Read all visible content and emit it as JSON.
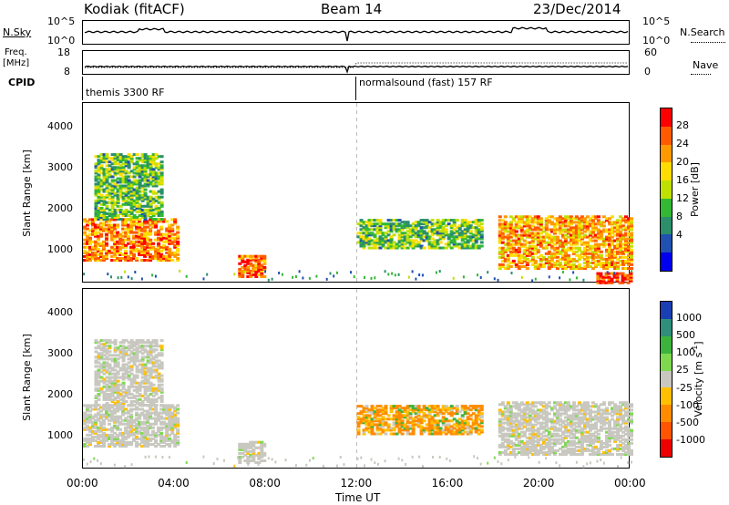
{
  "header": {
    "station": "Kodiak (fitACF)",
    "beam": "Beam 14",
    "date": "23/Dec/2014"
  },
  "top_panels": {
    "nsky_label": "N.Sky",
    "nsearch_label": "N.Search",
    "nsky_ticks": [
      "10^5",
      "10^0"
    ],
    "nsearch_ticks": [
      "10^5",
      "10^0"
    ],
    "freq_label": "Freq.",
    "freq_unit": "[MHz]",
    "freq_ticks": [
      "18",
      "8"
    ],
    "nave_label": "Nave",
    "nave_ticks": [
      "60",
      "0"
    ],
    "cpid_label": "CPID",
    "cpid_segments": [
      "themis 3300 RF",
      "normalsound (fast) 157 RF"
    ]
  },
  "power_panel": {
    "ylabel": "Slant Range [km]",
    "cbar_label": "Power [dB]",
    "cbar_ticks": [
      "28",
      "24",
      "20",
      "16",
      "12",
      "8",
      "4"
    ],
    "cbar_colors": [
      "#ff0000",
      "#ff5a00",
      "#ff9900",
      "#ffdd00",
      "#bfe000",
      "#33b833",
      "#2a8f6a",
      "#2050b0",
      "#0000ee"
    ]
  },
  "velocity_panel": {
    "ylabel": "Slant Range [km]",
    "cbar_label": "Velocity [m s",
    "cbar_label_sup": "-1",
    "cbar_label_end": "]",
    "cbar_ticks": [
      "1000",
      "500",
      "100",
      "25",
      "-25",
      "-100",
      "-500",
      "-1000"
    ],
    "cbar_colors": [
      "#1a3fb5",
      "#2f8f7a",
      "#3cb43c",
      "#7fd94f",
      "#c8c8c0",
      "#ffc000",
      "#ff8c00",
      "#ff5500",
      "#ee0000"
    ]
  },
  "xaxis": {
    "label": "Time UT",
    "ticks": [
      "00:00",
      "04:00",
      "08:00",
      "12:00",
      "16:00",
      "20:00",
      "00:00"
    ]
  },
  "chart_data": [
    {
      "type": "heatmap",
      "title": "Power [dB]",
      "xlabel": "Time UT",
      "ylabel": "Slant Range [km]",
      "xlim": [
        0,
        24
      ],
      "ylim": [
        200,
        4600
      ],
      "yticks": [
        1000,
        2000,
        3000,
        4000
      ],
      "xticks": [
        "00:00",
        "04:00",
        "08:00",
        "12:00",
        "16:00",
        "20:00",
        "00:00"
      ],
      "colorbar": {
        "label": "Power [dB]",
        "ticks": [
          4,
          8,
          12,
          16,
          20,
          24,
          28
        ]
      },
      "regions": [
        {
          "t": [
            0.0,
            4.2
          ],
          "r": [
            800,
            1800
          ],
          "power": 24
        },
        {
          "t": [
            0.5,
            3.5
          ],
          "r": [
            1800,
            3400
          ],
          "power": 12
        },
        {
          "t": [
            6.8,
            8.0
          ],
          "r": [
            400,
            900
          ],
          "power": 26
        },
        {
          "t": [
            12.0,
            17.5
          ],
          "r": [
            1100,
            1800
          ],
          "power": 12
        },
        {
          "t": [
            18.2,
            24.0
          ],
          "r": [
            600,
            1900
          ],
          "power": 22
        },
        {
          "t": [
            22.5,
            24.0
          ],
          "r": [
            250,
            500
          ],
          "power": 28
        }
      ]
    },
    {
      "type": "heatmap",
      "title": "Velocity [m s-1]",
      "xlabel": "Time UT",
      "ylabel": "Slant Range [km]",
      "xlim": [
        0,
        24
      ],
      "ylim": [
        200,
        4600
      ],
      "yticks": [
        1000,
        2000,
        3000,
        4000
      ],
      "xticks": [
        "00:00",
        "04:00",
        "08:00",
        "12:00",
        "16:00",
        "20:00",
        "00:00"
      ],
      "colorbar": {
        "label": "Velocity [m s-1]",
        "ticks": [
          -1000,
          -500,
          -100,
          -25,
          25,
          100,
          500,
          1000
        ]
      },
      "regions": [
        {
          "t": [
            0.0,
            4.2
          ],
          "r": [
            800,
            1800
          ],
          "velocity": 0
        },
        {
          "t": [
            0.5,
            3.5
          ],
          "r": [
            1800,
            3400
          ],
          "velocity": 0
        },
        {
          "t": [
            6.8,
            8.0
          ],
          "r": [
            400,
            900
          ],
          "velocity": 0
        },
        {
          "t": [
            12.0,
            17.5
          ],
          "r": [
            1100,
            1800
          ],
          "velocity": -200
        },
        {
          "t": [
            18.2,
            24.0
          ],
          "r": [
            600,
            1900
          ],
          "velocity": 0
        }
      ]
    }
  ]
}
